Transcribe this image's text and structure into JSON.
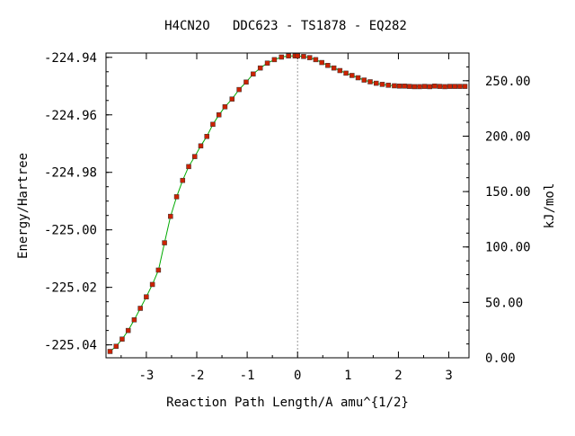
{
  "chart_data": {
    "type": "scatter",
    "title": "H4CN2O   DDC623 - TS1878 - EQ282",
    "xlabel": "Reaction Path Length/A amu^{1/2}",
    "ylabel": "Energy/Hartree",
    "y2label": "kJ/mol",
    "xlim": [
      -3.8,
      3.4
    ],
    "ylim": [
      -225.0445,
      -224.9385
    ],
    "y2lim": [
      0,
      275
    ],
    "x_ticks": [
      -3,
      -2,
      -1,
      0,
      1,
      2,
      3
    ],
    "x_tick_labels": [
      "-3",
      "-2",
      "-1",
      "0",
      "1",
      "2",
      "3"
    ],
    "y_ticks": [
      -224.94,
      -224.96,
      -224.98,
      -225.0,
      -225.02,
      -225.04
    ],
    "y_tick_labels": [
      "-224.94",
      "-224.96",
      "-224.98",
      "-225.00",
      "-225.02",
      "-225.04"
    ],
    "y2_ticks": [
      0,
      50,
      100,
      150,
      200,
      250
    ],
    "y2_tick_labels": [
      "0.00",
      "50.00",
      "100.00",
      "150.00",
      "200.00",
      "250.00"
    ],
    "ts_marker_x": 0,
    "grid": false,
    "series": [
      {
        "line_color": "#00aa00",
        "marker_color": "#cc2200",
        "x": [
          -3.72,
          -3.6,
          -3.48,
          -3.36,
          -3.24,
          -3.12,
          -3.0,
          -2.88,
          -2.76,
          -2.64,
          -2.52,
          -2.4,
          -2.28,
          -2.16,
          -2.04,
          -1.92,
          -1.8,
          -1.68,
          -1.56,
          -1.44,
          -1.3,
          -1.16,
          -1.02,
          -0.88,
          -0.74,
          -0.6,
          -0.46,
          -0.32,
          -0.18,
          -0.05,
          0.0,
          0.12,
          0.24,
          0.36,
          0.48,
          0.6,
          0.72,
          0.84,
          0.96,
          1.08,
          1.2,
          1.32,
          1.44,
          1.56,
          1.68,
          1.8,
          1.92,
          2.02,
          2.12,
          2.22,
          2.32,
          2.42,
          2.52,
          2.62,
          2.72,
          2.82,
          2.92,
          3.02,
          3.12,
          3.22,
          3.32
        ],
        "y": [
          -225.0423,
          -225.0405,
          -225.038,
          -225.035,
          -225.0313,
          -225.0273,
          -225.0233,
          -225.019,
          -225.014,
          -225.0045,
          -224.9953,
          -224.9885,
          -224.9828,
          -224.978,
          -224.9745,
          -224.9708,
          -224.9675,
          -224.9633,
          -224.96,
          -224.9572,
          -224.9545,
          -224.9512,
          -224.9486,
          -224.9458,
          -224.9437,
          -224.942,
          -224.9408,
          -224.9399,
          -224.9395,
          -224.9395,
          -224.9395,
          -224.9397,
          -224.9401,
          -224.9408,
          -224.9418,
          -224.9428,
          -224.9437,
          -224.9446,
          -224.9455,
          -224.9463,
          -224.9471,
          -224.9479,
          -224.9485,
          -224.949,
          -224.9494,
          -224.9497,
          -224.9499,
          -224.95,
          -224.95,
          -224.9501,
          -224.9502,
          -224.9502,
          -224.9501,
          -224.9502,
          -224.95,
          -224.9501,
          -224.9502,
          -224.9501,
          -224.9501,
          -224.9501,
          -224.9501
        ]
      }
    ]
  }
}
